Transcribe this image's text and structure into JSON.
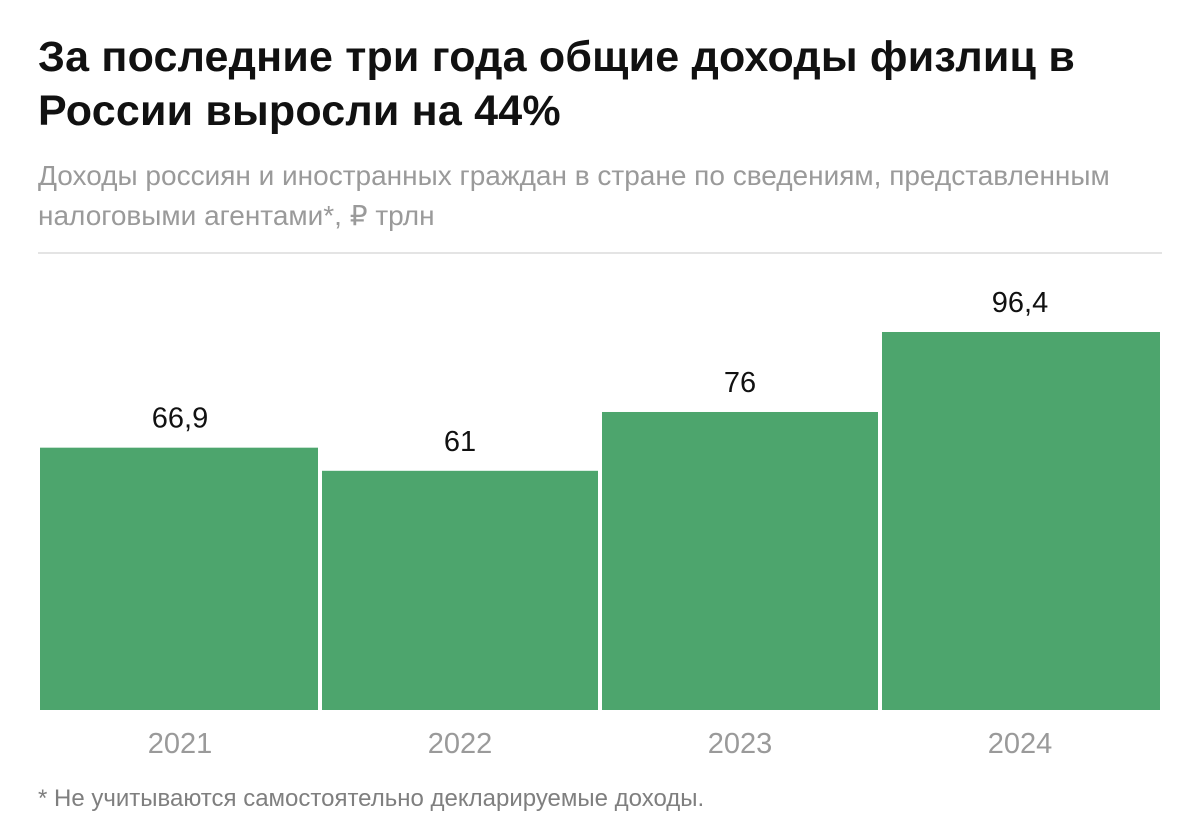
{
  "chart_data": {
    "type": "bar",
    "title": "За последние три года общие доходы физлиц в России выросли на 44%",
    "subtitle": "Доходы россиян и иностранных граждан в стране по сведениям, представленным налоговыми агентами*, ₽ трлн",
    "categories": [
      "2021",
      "2022",
      "2023",
      "2024"
    ],
    "values": [
      66.9,
      61,
      76,
      96.4
    ],
    "value_labels": [
      "66,9",
      "61",
      "76",
      "96,4"
    ],
    "xlabel": "",
    "ylabel": "₽ трлн",
    "ylim": [
      0,
      96.4
    ],
    "grid": false,
    "bar_color": "#4da56d",
    "footnote": "* Не учитываются самостоятельно декларируемые доходы."
  }
}
